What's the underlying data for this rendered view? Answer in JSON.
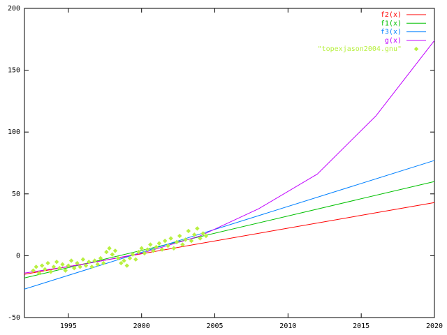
{
  "chart_data": {
    "type": "line",
    "xlim": [
      1992,
      2020
    ],
    "xticks": [
      1995,
      2000,
      2005,
      2010,
      2015,
      2020
    ],
    "ylim": [
      -50,
      200
    ],
    "yticks": [
      -50,
      0,
      50,
      100,
      150,
      200
    ],
    "legend": "top-right",
    "series": [
      {
        "name": "f2(x)",
        "color": "#ff0000",
        "style": "line",
        "x": [
          1992,
          2020
        ],
        "values": [
          -15,
          43
        ]
      },
      {
        "name": "f1(x)",
        "color": "#00c000",
        "style": "line",
        "x": [
          1992,
          2020
        ],
        "values": [
          -18,
          60
        ]
      },
      {
        "name": "f3(x)",
        "color": "#0080ff",
        "style": "line",
        "x": [
          1992,
          2020
        ],
        "values": [
          -27,
          77
        ]
      },
      {
        "name": "g(x)",
        "color": "#c000ff",
        "style": "line",
        "x": [
          1992,
          1996,
          2000,
          2004,
          2008,
          2012,
          2016,
          2020
        ],
        "values": [
          -14,
          -7,
          2,
          16,
          38,
          66,
          113,
          174
        ]
      },
      {
        "name": "\"topexjason2004.gnu\"",
        "color": "#b8f040",
        "style": "points",
        "x": [
          1992.6,
          1992.8,
          1993.0,
          1993.2,
          1993.4,
          1993.6,
          1993.8,
          1994.0,
          1994.2,
          1994.4,
          1994.6,
          1994.8,
          1995.0,
          1995.2,
          1995.4,
          1995.6,
          1995.8,
          1996.0,
          1996.2,
          1996.4,
          1996.6,
          1996.8,
          1997.0,
          1997.2,
          1997.4,
          1997.6,
          1997.8,
          1998.0,
          1998.2,
          1998.4,
          1998.6,
          1998.8,
          1999.0,
          1999.2,
          1999.4,
          1999.6,
          1999.8,
          2000.0,
          2000.2,
          2000.4,
          2000.6,
          2000.8,
          2001.0,
          2001.2,
          2001.4,
          2001.6,
          2001.8,
          2002.0,
          2002.2,
          2002.4,
          2002.6,
          2002.8,
          2003.0,
          2003.2,
          2003.4,
          2003.6,
          2003.8,
          2004.0,
          2004.2,
          2004.4
        ],
        "values": [
          -12,
          -9,
          -14,
          -8,
          -11,
          -6,
          -13,
          -9,
          -5,
          -10,
          -7,
          -12,
          -8,
          -4,
          -10,
          -6,
          -9,
          -3,
          -8,
          -5,
          -9,
          -4,
          -7,
          -2,
          -6,
          3,
          6,
          1,
          4,
          -2,
          -6,
          -4,
          -8,
          -2,
          1,
          -3,
          3,
          6,
          2,
          5,
          9,
          4,
          7,
          10,
          5,
          12,
          8,
          14,
          6,
          11,
          16,
          9,
          13,
          20,
          12,
          17,
          22,
          14,
          18,
          16
        ]
      }
    ]
  }
}
